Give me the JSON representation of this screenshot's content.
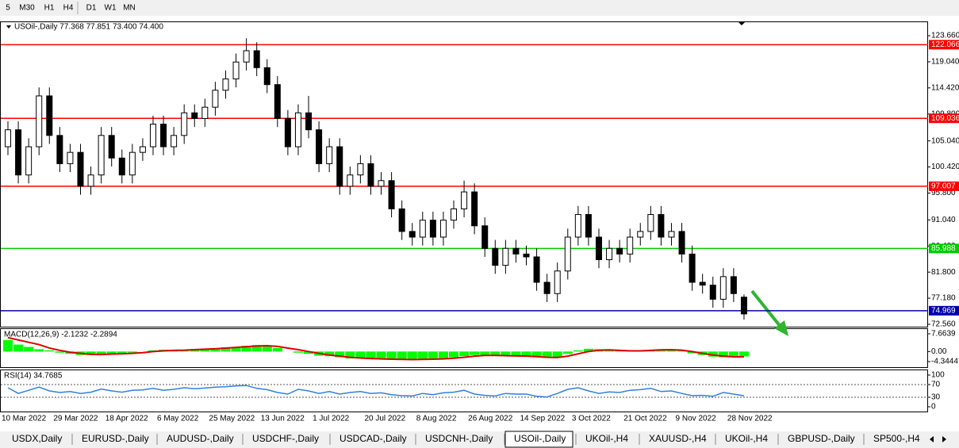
{
  "toolbar": {
    "timeframes": [
      "5",
      "M30",
      "H1",
      "H4",
      "D1",
      "W1",
      "MN"
    ]
  },
  "tabs": {
    "items": [
      "USDX,Daily",
      "EURUSD-,Daily",
      "AUDUSD-,Daily",
      "USDCHF-,Daily",
      "USDCAD-,Daily",
      "USDCNH-,Daily",
      "USOil-,Daily",
      "UKOil-,H4",
      "XAUUSD-,H4",
      "UKOil-,H4",
      "GBPUSD-,Daily",
      "SP500-,H4"
    ],
    "active": "USOil-,Daily"
  },
  "chart_data": [
    {
      "type": "candlestick",
      "title": "USOil-,Daily  77.368 77.851 73.400 74.400",
      "categories": [
        "10 Mar 2022",
        null,
        null,
        null,
        null,
        "29 Mar 2022",
        null,
        null,
        null,
        null,
        "18 Apr 2022",
        null,
        null,
        null,
        null,
        "6 May 2022",
        null,
        null,
        null,
        null,
        "25 May 2022",
        null,
        null,
        null,
        null,
        "13 Jun 2022",
        null,
        null,
        null,
        null,
        "1 Jul 2022",
        null,
        null,
        null,
        null,
        "20 Jul 2022",
        null,
        null,
        null,
        null,
        "8 Aug 2022",
        null,
        null,
        null,
        null,
        "26 Aug 2022",
        null,
        null,
        null,
        null,
        "14 Sep 2022",
        null,
        null,
        null,
        null,
        "3 Oct 2022",
        null,
        null,
        null,
        null,
        "21 Oct 2022",
        null,
        null,
        null,
        null,
        "9 Nov 2022",
        null,
        null,
        null,
        null,
        "28 Nov 2022",
        null
      ],
      "open": [
        104,
        107,
        99,
        104,
        113,
        106,
        101,
        103,
        97,
        99,
        106,
        102,
        99,
        103,
        104,
        108,
        104,
        106,
        110,
        109,
        111,
        114,
        116,
        119,
        121,
        118,
        115,
        109,
        104,
        110,
        107,
        101,
        104,
        97,
        99,
        101,
        97,
        98,
        93,
        89,
        88,
        91,
        88,
        91,
        93,
        96,
        90,
        86,
        83,
        86,
        85,
        84.5,
        80,
        78,
        82,
        88,
        92,
        88,
        84,
        86,
        85,
        88,
        89,
        92,
        88,
        89,
        85,
        80,
        79.5,
        77,
        81,
        77.368
      ],
      "high": [
        108.5,
        108.5,
        105.5,
        114.5,
        114.5,
        107.5,
        104.5,
        104.5,
        100.5,
        107.5,
        107.5,
        103.5,
        104.5,
        105.5,
        109.5,
        109.5,
        107.5,
        111.5,
        111.5,
        112.5,
        115.5,
        117.5,
        120.5,
        123.2,
        122.5,
        119.5,
        116.5,
        110.5,
        111.5,
        113,
        108.5,
        105.5,
        105.5,
        100.5,
        102.5,
        102.5,
        99.5,
        99.5,
        94.5,
        90.5,
        92.5,
        92.5,
        92.5,
        94.5,
        98,
        97.5,
        91.5,
        87.5,
        87.5,
        87.5,
        86.5,
        86,
        81.5,
        83.5,
        89.5,
        93.5,
        93.5,
        89.5,
        87.5,
        87.5,
        89.5,
        90.5,
        93.5,
        93.5,
        90.5,
        90.5,
        86.5,
        81.5,
        81,
        82.5,
        82.5,
        77.851
      ],
      "low": [
        102.5,
        97.5,
        97.5,
        102.5,
        104.5,
        99.5,
        99.5,
        95.5,
        95.5,
        97.5,
        100.5,
        97.5,
        97.5,
        101.5,
        102.5,
        102.5,
        102.5,
        104.5,
        107.5,
        107.5,
        109.5,
        112.5,
        114.5,
        117.5,
        116.5,
        113.5,
        107.5,
        102.5,
        102.5,
        105.5,
        99.5,
        99.5,
        95.5,
        95.5,
        97.5,
        95.5,
        95.5,
        91.5,
        87.5,
        86.5,
        86.5,
        86.5,
        86.5,
        89.5,
        91.5,
        88.5,
        84.5,
        81.5,
        81.5,
        83.5,
        83,
        78.5,
        76.5,
        76.5,
        80.5,
        86.5,
        86.5,
        82.5,
        82.5,
        83.5,
        83.5,
        86.5,
        87.5,
        86.5,
        86.5,
        83.5,
        78.5,
        78,
        75.5,
        75.5,
        76.5,
        73.4
      ],
      "close": [
        107,
        99,
        104,
        113,
        106,
        101,
        103,
        97,
        99,
        106,
        102,
        99,
        103,
        104,
        108,
        104,
        106,
        110,
        109,
        111,
        114,
        116,
        119,
        121,
        118,
        115,
        109,
        104,
        110,
        107,
        101,
        104,
        97,
        99,
        101,
        97,
        98,
        93,
        89,
        88,
        91,
        88,
        91,
        93,
        96,
        90,
        86,
        83,
        86,
        85,
        84.5,
        80,
        78,
        82,
        88,
        92,
        88,
        84,
        86,
        85,
        88,
        89,
        92,
        88,
        89,
        85,
        80,
        79.5,
        77,
        81,
        78,
        74.4
      ],
      "up_color": "#ffffff",
      "down_color": "#000000",
      "wick_color": "#000000",
      "ylim": [
        72.14,
        126.19
      ],
      "yticks": [
        {
          "value": 123.66,
          "label": "123.660"
        },
        {
          "value": 119.04,
          "label": "119.040"
        },
        {
          "value": 114.42,
          "label": "114.420"
        },
        {
          "value": 109.8,
          "label": "109.800"
        },
        {
          "value": 105.04,
          "label": "105.040"
        },
        {
          "value": 100.42,
          "label": "100.420"
        },
        {
          "value": 95.8,
          "label": "95.800"
        },
        {
          "value": 91.04,
          "label": "91.040"
        },
        {
          "value": 86.42,
          "label": "86.420"
        },
        {
          "value": 81.8,
          "label": "81.800"
        },
        {
          "value": 77.18,
          "label": "77.180"
        },
        {
          "value": 72.56,
          "label": "72.560"
        }
      ],
      "hlines": [
        {
          "value": 122.066,
          "color": "#ff0000"
        },
        {
          "value": 109.036,
          "color": "#ff0000"
        },
        {
          "value": 97.007,
          "color": "#ff0000"
        },
        {
          "value": 85.988,
          "color": "#00cc00"
        },
        {
          "value": 74.969,
          "color": "#0000aa"
        }
      ]
    },
    {
      "type": "macd",
      "title": "MACD(12,26,9) -2.1232 -2.2894",
      "values": [
        5,
        3,
        2,
        1,
        0.5,
        -0.5,
        -1,
        -1.5,
        -1.5,
        -1,
        -0.8,
        -0.8,
        -0.5,
        0,
        0.5,
        0.8,
        0.6,
        0.8,
        1,
        1.2,
        1.5,
        1.8,
        2,
        2.5,
        2.8,
        2.5,
        1.5,
        0,
        -0.5,
        -1,
        -1.8,
        -2,
        -2.5,
        -3,
        -3,
        -3.2,
        -3.2,
        -3.4,
        -3.6,
        -3.5,
        -3.3,
        -3.2,
        -3,
        -2.5,
        -2,
        -1.5,
        -1.5,
        -1.8,
        -2,
        -2,
        -2.2,
        -2.5,
        -2.8,
        -2.5,
        -1,
        0.5,
        1.2,
        1,
        0.5,
        0.3,
        0.2,
        0.3,
        0.8,
        1,
        0.8,
        0.3,
        -0.8,
        -1.5,
        -2.2,
        -2.5,
        -2.4,
        -2.1232
      ],
      "signal": [
        6,
        5,
        4,
        3,
        1.5,
        0.5,
        -0.3,
        -0.8,
        -1.2,
        -1.3,
        -1.1,
        -1,
        -0.8,
        -0.5,
        0,
        0.3,
        0.5,
        0.6,
        0.8,
        1,
        1.2,
        1.5,
        1.8,
        2.1,
        2.4,
        2.5,
        2.2,
        1.5,
        0.8,
        0,
        -0.8,
        -1.5,
        -2,
        -2.5,
        -2.8,
        -3,
        -3.2,
        -3.3,
        -3.4,
        -3.5,
        -3.4,
        -3.3,
        -3.2,
        -2.9,
        -2.5,
        -2,
        -1.7,
        -1.7,
        -1.8,
        -1.9,
        -2,
        -2.2,
        -2.5,
        -2.6,
        -2,
        -1,
        0,
        0.6,
        0.7,
        0.5,
        0.3,
        0.3,
        0.5,
        0.7,
        0.8,
        0.6,
        0,
        -0.8,
        -1.5,
        -2,
        -2.3,
        -2.2894
      ],
      "color": "#00ff00",
      "signal_color": "#dd0000",
      "ylim": [
        -6.75,
        10.06
      ],
      "yticks": [
        7.6639,
        {
          "value": 0,
          "label": "0.00"
        },
        -4.3444
      ]
    },
    {
      "type": "line",
      "title": "RSI(14) 34.7685",
      "values": [
        60,
        42,
        52,
        62,
        50,
        45,
        48,
        42,
        46,
        56,
        50,
        46,
        52,
        53,
        58,
        52,
        55,
        60,
        57,
        59,
        62,
        63,
        66,
        67,
        58,
        54,
        45,
        40,
        55,
        50,
        42,
        48,
        40,
        45,
        48,
        42,
        44,
        38,
        35,
        34,
        42,
        38,
        44,
        46,
        52,
        40,
        36,
        34,
        42,
        40,
        40,
        33,
        31,
        42,
        55,
        60,
        50,
        42,
        47,
        45,
        52,
        54,
        58,
        48,
        50,
        42,
        35,
        36,
        33,
        45,
        40,
        34.7685
      ],
      "color": "#2f80e0",
      "ylim": [
        -15,
        117.5
      ],
      "yticks": [
        100,
        70,
        30,
        0
      ],
      "levels": [
        70,
        30
      ]
    }
  ]
}
